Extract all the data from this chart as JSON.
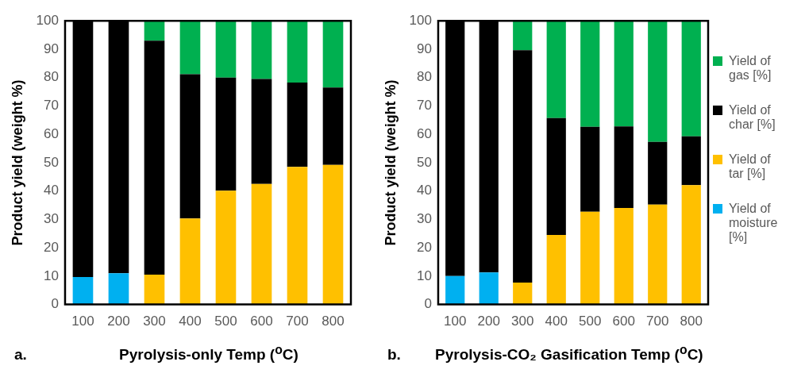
{
  "chart_data": [
    {
      "type": "bar",
      "stacked": true,
      "xlabel": "Pyrolysis-only Temp ($^{o}$C)",
      "ylabel": "Product yield (weight %)",
      "annotations": [
        "a."
      ],
      "categories": [
        "100",
        "200",
        "300",
        "400",
        "500",
        "600",
        "700",
        "800"
      ],
      "series": [
        {
          "color": "#00b0f0",
          "values": [
            9.7,
            11.0,
            null,
            null,
            null,
            null,
            null,
            null
          ]
        },
        {
          "color": "#ffc000",
          "values": [
            null,
            null,
            10.5,
            30.3,
            40.1,
            42.5,
            48.5,
            49.2
          ]
        },
        {
          "color": "#000000",
          "values": [
            90.3,
            89.0,
            82.5,
            50.9,
            39.9,
            37.0,
            29.7,
            27.3
          ]
        },
        {
          "color": "#00b050",
          "values": [
            null,
            null,
            7.0,
            18.8,
            20.0,
            20.5,
            21.8,
            23.5
          ]
        }
      ],
      "ylim": [
        0,
        100
      ],
      "yticks": [
        0,
        10,
        20,
        30,
        40,
        50,
        60,
        70,
        80,
        90,
        100
      ],
      "grid": false,
      "legend": false
    },
    {
      "type": "bar",
      "stacked": true,
      "xlabel": "Pyrolysis-CO₂ Gasification Temp ($^{o}$C)",
      "ylabel": "Product yield (weight %)",
      "annotations": [
        "b."
      ],
      "categories": [
        "100",
        "200",
        "300",
        "400",
        "500",
        "600",
        "700",
        "800"
      ],
      "series": [
        {
          "name": "Yield of moisture [%]",
          "color": "#00b0f0",
          "values": [
            10.0,
            11.3,
            null,
            null,
            null,
            null,
            null,
            null
          ]
        },
        {
          "name": "Yield of tar [%]",
          "color": "#ffc000",
          "values": [
            null,
            null,
            7.7,
            24.5,
            32.7,
            34.0,
            35.2,
            42.1
          ]
        },
        {
          "name": "Yield of char [%]",
          "color": "#000000",
          "values": [
            90.0,
            88.7,
            81.9,
            41.2,
            29.9,
            28.8,
            22.1,
            17.2
          ]
        },
        {
          "name": "Yield of gas [%]",
          "color": "#00b050",
          "values": [
            null,
            null,
            10.4,
            34.3,
            37.4,
            37.2,
            42.7,
            40.7
          ]
        }
      ],
      "ylim": [
        0,
        100
      ],
      "yticks": [
        0,
        10,
        20,
        30,
        40,
        50,
        60,
        70,
        80,
        90,
        100
      ],
      "grid": false,
      "legend": "right"
    }
  ]
}
